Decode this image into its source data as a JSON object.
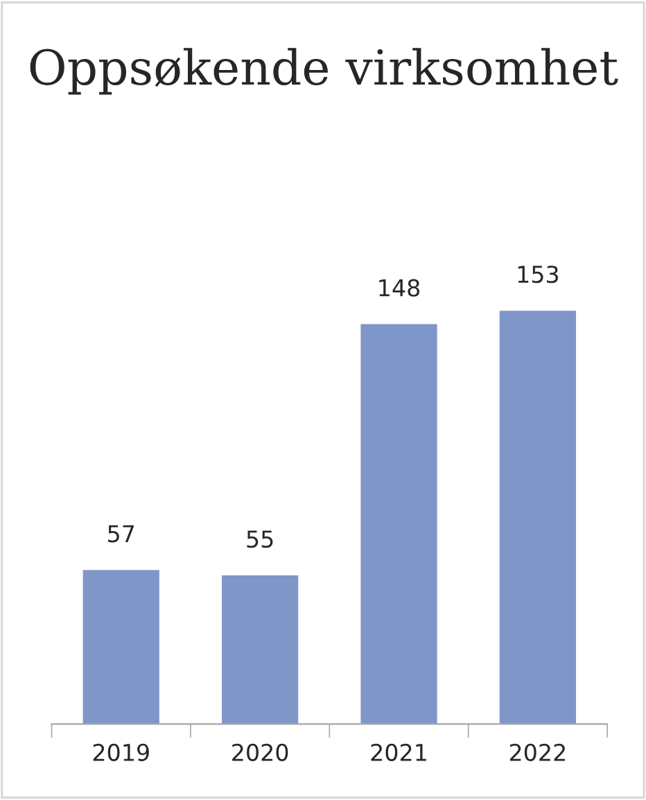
{
  "chart_data": {
    "type": "bar",
    "title": "Oppsøkende virksomhet",
    "categories": [
      "2019",
      "2020",
      "2021",
      "2022"
    ],
    "values": [
      57,
      55,
      148,
      153
    ],
    "color": "#7f96c8",
    "data_labels": true,
    "grid": false,
    "legend": false
  }
}
